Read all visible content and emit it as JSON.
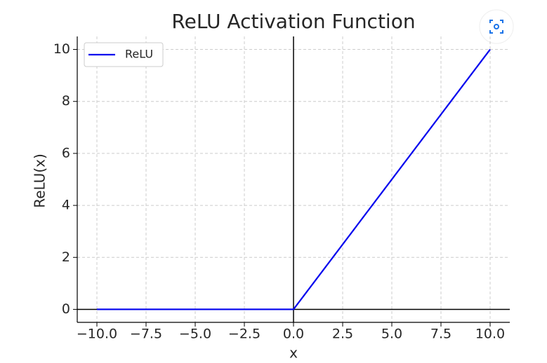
{
  "chart_data": {
    "type": "line",
    "title": "ReLU Activation Function",
    "x_label": "x",
    "y_label": "ReLU(x)",
    "x": [
      -10,
      0,
      10
    ],
    "series": [
      {
        "name": "ReLU",
        "color": "#0000ee",
        "values": [
          0,
          0,
          10
        ]
      }
    ],
    "xlim": [
      -11,
      11
    ],
    "ylim": [
      -0.5,
      10.5
    ],
    "xticks": [
      {
        "value": -10,
        "label": "−10.0"
      },
      {
        "value": -7.5,
        "label": "−7.5"
      },
      {
        "value": -5,
        "label": "−5.0"
      },
      {
        "value": -2.5,
        "label": "−2.5"
      },
      {
        "value": 0,
        "label": "0.0"
      },
      {
        "value": 2.5,
        "label": "2.5"
      },
      {
        "value": 5,
        "label": "5.0"
      },
      {
        "value": 7.5,
        "label": "7.5"
      },
      {
        "value": 10,
        "label": "10.0"
      }
    ],
    "yticks": [
      0,
      2,
      4,
      6,
      8,
      10
    ],
    "grid": true,
    "legend": "upper-left"
  }
}
